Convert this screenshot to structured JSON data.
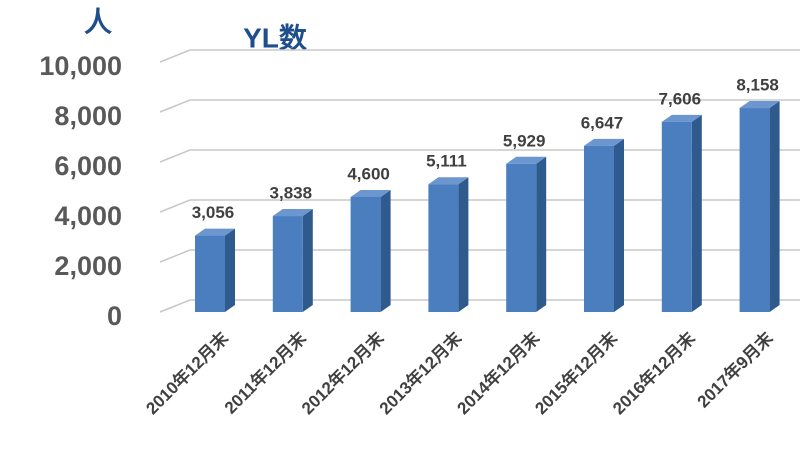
{
  "chart_data": {
    "type": "bar3d",
    "title": "YL数",
    "y_label": "人",
    "categories": [
      "2010年12月末",
      "2011年12月末",
      "2012年12月末",
      "2013年12月末",
      "2014年12月末",
      "2015年12月末",
      "2016年12月末",
      "2017年9月末"
    ],
    "values": [
      3056,
      3838,
      4600,
      5111,
      5929,
      6647,
      7606,
      8158
    ],
    "value_labels": [
      "3,056",
      "3,838",
      "4,600",
      "5,111",
      "5,929",
      "6,647",
      "7,606",
      "8,158"
    ],
    "color": "#4a7ebf",
    "ylim": [
      0,
      10000
    ],
    "yticks": [
      0,
      {
        "value": 2000,
        "label": "2,000"
      },
      {
        "value": 4000,
        "label": "4,000"
      },
      {
        "value": 6000,
        "label": "6,000"
      },
      {
        "value": 8000,
        "label": "8,000"
      },
      {
        "value": 10000,
        "label": "10,000"
      }
    ],
    "grid": true
  }
}
